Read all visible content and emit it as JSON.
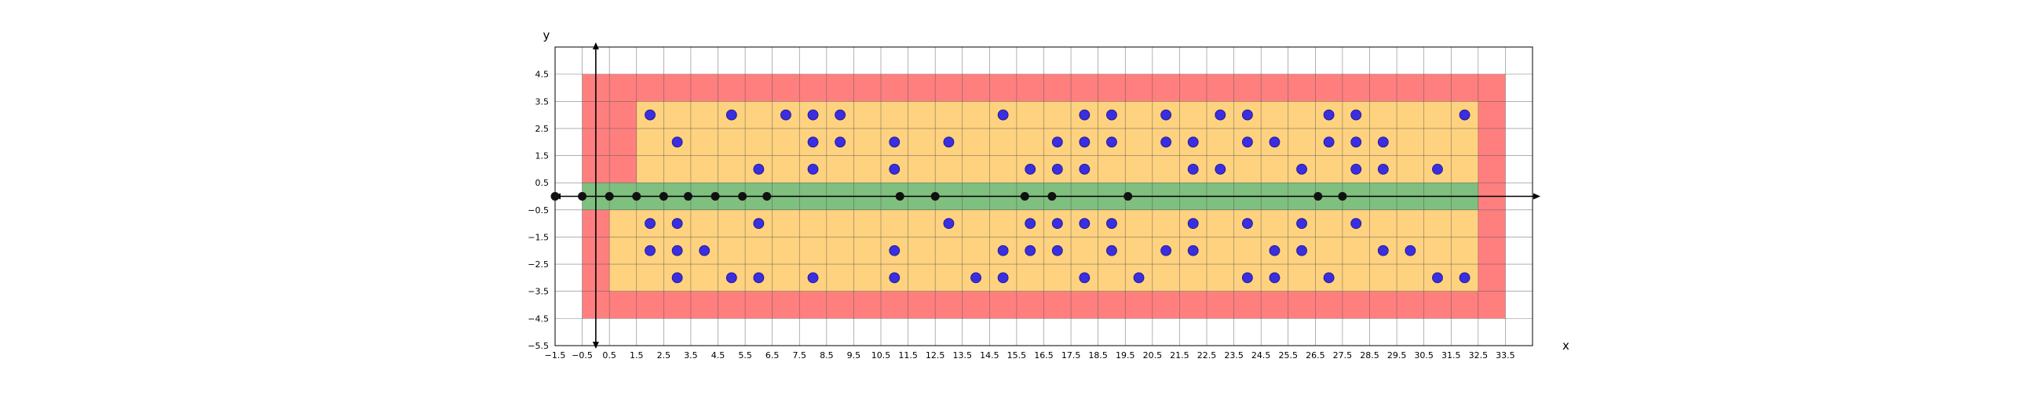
{
  "chart_data": {
    "type": "scatter",
    "xlabel": "x",
    "ylabel": "y",
    "xlim": [
      -1.5,
      34.5
    ],
    "ylim": [
      -5.5,
      5.5
    ],
    "grid": true,
    "xticks": [
      -1.5,
      -0.5,
      0.5,
      1.5,
      2.5,
      3.5,
      4.5,
      5.5,
      6.5,
      7.5,
      8.5,
      9.5,
      10.5,
      11.5,
      12.5,
      13.5,
      14.5,
      15.5,
      16.5,
      17.5,
      18.5,
      19.5,
      20.5,
      21.5,
      22.5,
      23.5,
      24.5,
      25.5,
      26.5,
      27.5,
      28.5,
      29.5,
      30.5,
      31.5,
      32.5,
      33.5
    ],
    "xtick_labels": [
      "−1.5",
      "−0.5",
      "0.5",
      "1.5",
      "2.5",
      "3.5",
      "4.5",
      "5.5",
      "6.5",
      "7.5",
      "8.5",
      "9.5",
      "10.5",
      "11.5",
      "12.5",
      "13.5",
      "14.5",
      "15.5",
      "16.5",
      "17.5",
      "18.5",
      "19.5",
      "20.5",
      "21.5",
      "22.5",
      "23.5",
      "24.5",
      "25.5",
      "26.5",
      "27.5",
      "28.5",
      "29.5",
      "30.5",
      "31.5",
      "32.5",
      "33.5"
    ],
    "yticks": [
      4.5,
      3.5,
      2.5,
      1.5,
      0.5,
      -0.5,
      -1.5,
      -2.5,
      -3.5,
      -4.5,
      -5.5
    ],
    "ytick_labels": [
      "4.5",
      "3.5",
      "2.5",
      "1.5",
      "0.5",
      "−0.5",
      "−1.5",
      "−2.5",
      "−3.5",
      "−4.5",
      "−5.5"
    ],
    "regions": [
      {
        "kind": "outer",
        "color": "#ff7f7f",
        "rects": [
          [
            -0.5,
            -4.5,
            34.0,
            9.0
          ]
        ]
      },
      {
        "kind": "inner",
        "color": "#ffd27f",
        "rects": [
          [
            1.5,
            0.5,
            31.0,
            3.0
          ],
          [
            0.5,
            -3.5,
            32.0,
            3.0
          ]
        ]
      },
      {
        "kind": "band",
        "color": "#7fbf7f",
        "rects": [
          [
            -0.5,
            -0.5,
            33.0,
            1.0
          ]
        ]
      }
    ],
    "axis_points": [
      {
        "x": -1.5,
        "y": 0
      },
      {
        "x": -0.5,
        "y": 0
      },
      {
        "x": 0.5,
        "y": 0
      },
      {
        "x": 1.5,
        "y": 0
      },
      {
        "x": 2.5,
        "y": 0
      },
      {
        "x": 3.4,
        "y": 0
      },
      {
        "x": 4.4,
        "y": 0
      },
      {
        "x": 5.4,
        "y": 0
      },
      {
        "x": 6.3,
        "y": 0
      },
      {
        "x": 11.2,
        "y": 0
      },
      {
        "x": 12.5,
        "y": 0
      },
      {
        "x": 15.8,
        "y": 0
      },
      {
        "x": 16.8,
        "y": 0
      },
      {
        "x": 19.6,
        "y": 0
      },
      {
        "x": 26.6,
        "y": 0
      },
      {
        "x": 27.5,
        "y": 0
      }
    ],
    "points": [
      {
        "x": 2,
        "y": 3
      },
      {
        "x": 5,
        "y": 3
      },
      {
        "x": 7,
        "y": 3
      },
      {
        "x": 8,
        "y": 3
      },
      {
        "x": 9,
        "y": 3
      },
      {
        "x": 15,
        "y": 3
      },
      {
        "x": 18,
        "y": 3
      },
      {
        "x": 19,
        "y": 3
      },
      {
        "x": 21,
        "y": 3
      },
      {
        "x": 23,
        "y": 3
      },
      {
        "x": 24,
        "y": 3
      },
      {
        "x": 27,
        "y": 3
      },
      {
        "x": 28,
        "y": 3
      },
      {
        "x": 32,
        "y": 3
      },
      {
        "x": 3,
        "y": 2
      },
      {
        "x": 8,
        "y": 2
      },
      {
        "x": 9,
        "y": 2
      },
      {
        "x": 11,
        "y": 2
      },
      {
        "x": 13,
        "y": 2
      },
      {
        "x": 17,
        "y": 2
      },
      {
        "x": 18,
        "y": 2
      },
      {
        "x": 19,
        "y": 2
      },
      {
        "x": 21,
        "y": 2
      },
      {
        "x": 22,
        "y": 2
      },
      {
        "x": 24,
        "y": 2
      },
      {
        "x": 25,
        "y": 2
      },
      {
        "x": 27,
        "y": 2
      },
      {
        "x": 28,
        "y": 2
      },
      {
        "x": 29,
        "y": 2
      },
      {
        "x": 6,
        "y": 1
      },
      {
        "x": 8,
        "y": 1
      },
      {
        "x": 11,
        "y": 1
      },
      {
        "x": 16,
        "y": 1
      },
      {
        "x": 17,
        "y": 1
      },
      {
        "x": 18,
        "y": 1
      },
      {
        "x": 22,
        "y": 1
      },
      {
        "x": 23,
        "y": 1
      },
      {
        "x": 26,
        "y": 1
      },
      {
        "x": 28,
        "y": 1
      },
      {
        "x": 29,
        "y": 1
      },
      {
        "x": 31,
        "y": 1
      },
      {
        "x": 2,
        "y": -1
      },
      {
        "x": 3,
        "y": -1
      },
      {
        "x": 6,
        "y": -1
      },
      {
        "x": 13,
        "y": -1
      },
      {
        "x": 16,
        "y": -1
      },
      {
        "x": 17,
        "y": -1
      },
      {
        "x": 18,
        "y": -1
      },
      {
        "x": 19,
        "y": -1
      },
      {
        "x": 22,
        "y": -1
      },
      {
        "x": 24,
        "y": -1
      },
      {
        "x": 26,
        "y": -1
      },
      {
        "x": 28,
        "y": -1
      },
      {
        "x": 2,
        "y": -2
      },
      {
        "x": 3,
        "y": -2
      },
      {
        "x": 4,
        "y": -2
      },
      {
        "x": 11,
        "y": -2
      },
      {
        "x": 15,
        "y": -2
      },
      {
        "x": 16,
        "y": -2
      },
      {
        "x": 17,
        "y": -2
      },
      {
        "x": 19,
        "y": -2
      },
      {
        "x": 21,
        "y": -2
      },
      {
        "x": 22,
        "y": -2
      },
      {
        "x": 25,
        "y": -2
      },
      {
        "x": 26,
        "y": -2
      },
      {
        "x": 29,
        "y": -2
      },
      {
        "x": 30,
        "y": -2
      },
      {
        "x": 3,
        "y": -3
      },
      {
        "x": 5,
        "y": -3
      },
      {
        "x": 6,
        "y": -3
      },
      {
        "x": 8,
        "y": -3
      },
      {
        "x": 11,
        "y": -3
      },
      {
        "x": 14,
        "y": -3
      },
      {
        "x": 15,
        "y": -3
      },
      {
        "x": 18,
        "y": -3
      },
      {
        "x": 20,
        "y": -3
      },
      {
        "x": 24,
        "y": -3
      },
      {
        "x": 25,
        "y": -3
      },
      {
        "x": 27,
        "y": -3
      },
      {
        "x": 31,
        "y": -3
      },
      {
        "x": 32,
        "y": -3
      }
    ],
    "colors": {
      "point": "#3a2ee0",
      "point_edge": "#1a1480",
      "axis_point": "#111111",
      "grid": "#555555"
    }
  }
}
